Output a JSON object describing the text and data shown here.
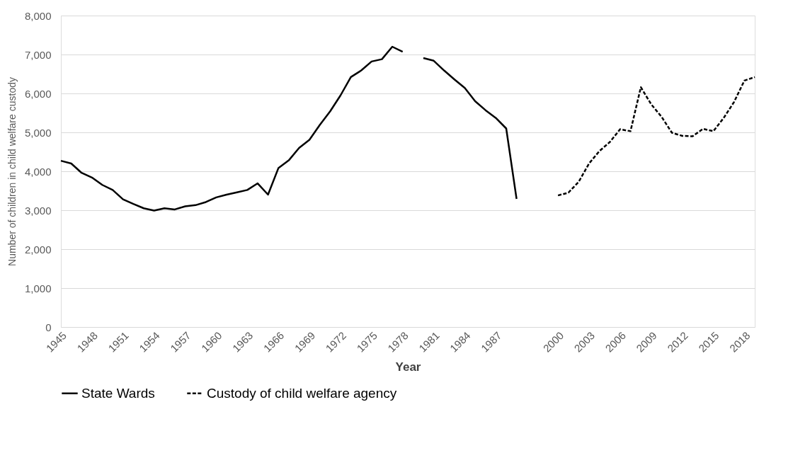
{
  "chart_data": {
    "type": "line",
    "xlabel": "Year",
    "ylabel": "Number of children in child welfare custody",
    "categories": [
      "1945",
      null,
      null,
      "1948",
      null,
      null,
      "1951",
      null,
      null,
      "1954",
      null,
      null,
      "1957",
      null,
      null,
      "1960",
      null,
      null,
      "1963",
      null,
      null,
      "1966",
      null,
      null,
      "1969",
      null,
      null,
      "1972",
      null,
      null,
      "1975",
      null,
      null,
      "1978",
      null,
      null,
      "1981",
      null,
      null,
      "1984",
      null,
      null,
      "1987",
      null,
      null,
      null,
      null,
      null,
      "2000",
      null,
      null,
      "2003",
      null,
      null,
      "2006",
      null,
      null,
      "2009",
      null,
      null,
      "2012",
      null,
      null,
      "2015",
      null,
      null,
      "2018",
      null
    ],
    "series": [
      {
        "name": "State Wards",
        "color": "#000000",
        "line_style": "solid",
        "values": [
          4270,
          4200,
          3960,
          3840,
          3650,
          3520,
          3280,
          3160,
          3050,
          2990,
          3050,
          3020,
          3100,
          3130,
          3210,
          3330,
          3400,
          3460,
          3520,
          3690,
          3400,
          4080,
          4280,
          4600,
          4810,
          5190,
          5540,
          5950,
          6420,
          6590,
          6820,
          6880,
          7200,
          7070,
          null,
          6910,
          6840,
          6590,
          6360,
          6140,
          5800,
          5570,
          5370,
          5100,
          3290,
          null,
          null,
          null,
          null,
          null,
          null,
          null,
          null,
          null,
          null,
          null,
          null,
          null,
          null,
          null,
          null,
          null,
          null,
          null,
          null,
          null,
          null,
          null
        ]
      },
      {
        "name": "Custody of child welfare agency",
        "color": "#000000",
        "line_style": "dashed",
        "values": [
          null,
          null,
          null,
          null,
          null,
          null,
          null,
          null,
          null,
          null,
          null,
          null,
          null,
          null,
          null,
          null,
          null,
          null,
          null,
          null,
          null,
          null,
          null,
          null,
          null,
          null,
          null,
          null,
          null,
          null,
          null,
          null,
          null,
          null,
          null,
          null,
          null,
          null,
          null,
          null,
          null,
          null,
          null,
          null,
          null,
          null,
          null,
          null,
          3380,
          3450,
          3730,
          4200,
          4520,
          4750,
          5080,
          5030,
          6160,
          5720,
          5400,
          4990,
          4910,
          4900,
          5090,
          5030,
          5370,
          5780,
          6330,
          6420
        ]
      }
    ],
    "ylim": [
      0,
      8000
    ],
    "yticks": [
      {
        "value": 0,
        "label": "0"
      },
      {
        "value": 1000,
        "label": "1,000"
      },
      {
        "value": 2000,
        "label": "2,000"
      },
      {
        "value": 3000,
        "label": "3,000"
      },
      {
        "value": 4000,
        "label": "4,000"
      },
      {
        "value": 5000,
        "label": "5,000"
      },
      {
        "value": 6000,
        "label": "6,000"
      },
      {
        "value": 7000,
        "label": "7,000"
      },
      {
        "value": 8000,
        "label": "8,000"
      }
    ],
    "grid": "y",
    "legend": "bottom",
    "marker": "none"
  }
}
